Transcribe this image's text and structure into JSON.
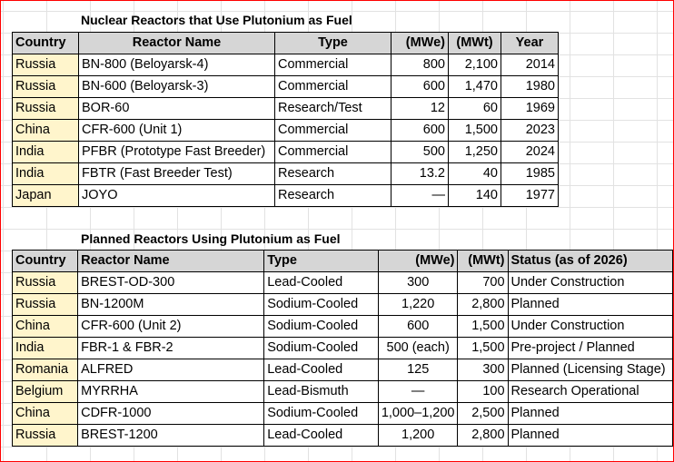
{
  "table1": {
    "title": "Nuclear Reactors that Use Plutonium as Fuel",
    "headers": [
      "Country",
      "Reactor Name",
      "Type",
      "(MWe)",
      "(MWt)",
      "Year"
    ],
    "rows": [
      [
        "Russia",
        "BN-800 (Beloyarsk-4)",
        "Commercial",
        "800",
        "2,100",
        "2014"
      ],
      [
        "Russia",
        "BN-600 (Beloyarsk-3)",
        "Commercial",
        "600",
        "1,470",
        "1980"
      ],
      [
        "Russia",
        "BOR-60",
        "Research/Test",
        "12",
        "60",
        "1969"
      ],
      [
        "China",
        "CFR-600 (Unit 1)",
        "Commercial",
        "600",
        "1,500",
        "2023"
      ],
      [
        "India",
        "PFBR (Prototype Fast Breeder)",
        "Commercial",
        "500",
        "1,250",
        "2024"
      ],
      [
        "India",
        "FBTR (Fast Breeder Test)",
        "Research",
        "13.2",
        "40",
        "1985"
      ],
      [
        "Japan",
        "JOYO",
        "Research",
        "—",
        "140",
        "1977"
      ]
    ]
  },
  "table2": {
    "title": "Planned Reactors Using Plutonium as Fuel",
    "headers": [
      "Country",
      "Reactor Name",
      "Type",
      "(MWe)",
      "(MWt)",
      "Status (as of 2026)"
    ],
    "rows": [
      [
        "Russia",
        "BREST-OD-300",
        "Lead-Cooled",
        "300",
        "700",
        "Under Construction"
      ],
      [
        "Russia",
        "BN-1200M",
        "Sodium-Cooled",
        "1,220",
        "2,800",
        "Planned"
      ],
      [
        "China",
        "CFR-600 (Unit 2)",
        "Sodium-Cooled",
        "600",
        "1,500",
        "Under Construction"
      ],
      [
        "India",
        "FBR-1 & FBR-2",
        "Sodium-Cooled",
        "500 (each)",
        "1,500",
        "Pre-project / Planned"
      ],
      [
        "Romania",
        "ALFRED",
        "Lead-Cooled",
        "125",
        "300",
        "Planned (Licensing Stage)"
      ],
      [
        "Belgium",
        "MYRRHA",
        "Lead-Bismuth",
        "—",
        "100",
        "Research Operational"
      ],
      [
        "China",
        "CDFR-1000",
        "Sodium-Cooled",
        "1,000–1,200",
        "2,500",
        "Planned"
      ],
      [
        "Russia",
        "BREST-1200",
        "Lead-Cooled",
        "1,200",
        "2,800",
        "Planned"
      ]
    ]
  }
}
